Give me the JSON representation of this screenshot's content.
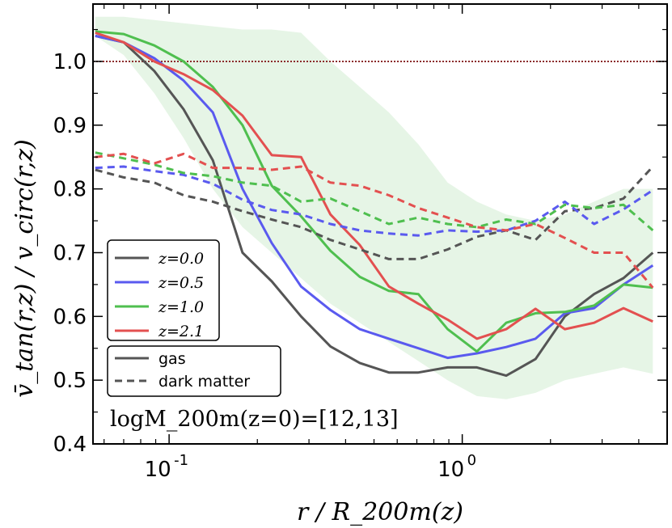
{
  "chart_data": {
    "type": "line",
    "xscale": "log",
    "xlim": [
      0.055,
      5.0
    ],
    "ylim": [
      0.4,
      1.09
    ],
    "xlabel": "r / R_200m(z)",
    "ylabel": "v̄_tan(r,z) / v_circ(r,z)",
    "x_ticks": [
      {
        "value": 0.1,
        "base": "10",
        "exp": "-1"
      },
      {
        "value": 1.0,
        "base": "10",
        "exp": "0"
      }
    ],
    "y_ticks": [
      "0.4",
      "0.5",
      "0.6",
      "0.7",
      "0.8",
      "0.9",
      "1.0"
    ],
    "reference_line": {
      "y": 1.0,
      "style": "dotted",
      "color": "#8b2b2b"
    },
    "annotation": "logM_200m(z=0)=[12,13]",
    "legend_z": [
      {
        "label": "z=0.0",
        "color": "#555555"
      },
      {
        "label": "z=0.5",
        "color": "#5a5aef"
      },
      {
        "label": "z=1.0",
        "color": "#4fbf4f"
      },
      {
        "label": "z=2.1",
        "color": "#e35050"
      }
    ],
    "legend_style": [
      {
        "label": "gas",
        "style": "solid"
      },
      {
        "label": "dark matter",
        "style": "dashed"
      }
    ],
    "x": [
      0.056,
      0.07,
      0.089,
      0.112,
      0.141,
      0.178,
      0.224,
      0.282,
      0.355,
      0.447,
      0.562,
      0.708,
      0.891,
      1.122,
      1.413,
      1.778,
      2.239,
      2.818,
      3.548,
      4.467
    ],
    "band": {
      "color": "#b7e3b7",
      "upper": [
        1.07,
        1.07,
        1.065,
        1.06,
        1.055,
        1.05,
        1.05,
        1.045,
        1.0,
        0.96,
        0.92,
        0.87,
        0.81,
        0.78,
        0.76,
        0.75,
        0.76,
        0.78,
        0.8,
        0.8
      ],
      "lower": [
        1.04,
        1.01,
        0.95,
        0.88,
        0.8,
        0.74,
        0.7,
        0.66,
        0.62,
        0.59,
        0.56,
        0.53,
        0.5,
        0.475,
        0.47,
        0.48,
        0.5,
        0.51,
        0.52,
        0.51
      ]
    },
    "series": [
      {
        "name": "z=0.0 gas",
        "color": "#555555",
        "dash": false,
        "values": [
          1.04,
          1.03,
          0.985,
          0.925,
          0.845,
          0.7,
          0.655,
          0.6,
          0.553,
          0.527,
          0.512,
          0.512,
          0.52,
          0.52,
          0.507,
          0.533,
          0.6,
          0.635,
          0.66,
          0.7
        ]
      },
      {
        "name": "z=0.5 gas",
        "color": "#5a5aef",
        "dash": false,
        "values": [
          1.04,
          1.03,
          1.005,
          0.97,
          0.92,
          0.8,
          0.715,
          0.647,
          0.61,
          0.58,
          0.565,
          0.55,
          0.535,
          0.542,
          0.552,
          0.565,
          0.605,
          0.613,
          0.65,
          0.68
        ]
      },
      {
        "name": "z=1.0 gas",
        "color": "#4fbf4f",
        "dash": false,
        "values": [
          1.047,
          1.043,
          1.025,
          1.0,
          0.96,
          0.9,
          0.805,
          0.757,
          0.703,
          0.662,
          0.64,
          0.635,
          0.58,
          0.545,
          0.59,
          0.605,
          0.607,
          0.617,
          0.65,
          0.645
        ]
      },
      {
        "name": "z=2.1 gas",
        "color": "#e35050",
        "dash": false,
        "values": [
          1.045,
          1.03,
          1.0,
          0.98,
          0.955,
          0.915,
          0.853,
          0.85,
          0.76,
          0.712,
          0.647,
          0.62,
          0.595,
          0.565,
          0.58,
          0.612,
          0.58,
          0.59,
          0.613,
          0.592
        ]
      },
      {
        "name": "z=0.0 dark matter",
        "color": "#555555",
        "dash": true,
        "values": [
          0.83,
          0.818,
          0.81,
          0.79,
          0.78,
          0.765,
          0.752,
          0.74,
          0.72,
          0.705,
          0.69,
          0.69,
          0.705,
          0.725,
          0.735,
          0.72,
          0.765,
          0.77,
          0.785,
          0.835
        ]
      },
      {
        "name": "z=0.5 dark matter",
        "color": "#5a5aef",
        "dash": true,
        "values": [
          0.833,
          0.835,
          0.828,
          0.822,
          0.808,
          0.783,
          0.767,
          0.76,
          0.745,
          0.735,
          0.73,
          0.727,
          0.735,
          0.733,
          0.735,
          0.75,
          0.78,
          0.745,
          0.768,
          0.798
        ]
      },
      {
        "name": "z=1.0 dark matter",
        "color": "#4fbf4f",
        "dash": true,
        "values": [
          0.857,
          0.848,
          0.838,
          0.825,
          0.82,
          0.81,
          0.805,
          0.78,
          0.785,
          0.765,
          0.745,
          0.755,
          0.745,
          0.74,
          0.752,
          0.745,
          0.775,
          0.77,
          0.775,
          0.735
        ]
      },
      {
        "name": "z=2.1 dark matter",
        "color": "#e35050",
        "dash": true,
        "values": [
          0.85,
          0.855,
          0.84,
          0.855,
          0.833,
          0.833,
          0.83,
          0.835,
          0.81,
          0.805,
          0.79,
          0.77,
          0.755,
          0.74,
          0.735,
          0.745,
          0.723,
          0.7,
          0.7,
          0.645
        ]
      }
    ]
  }
}
